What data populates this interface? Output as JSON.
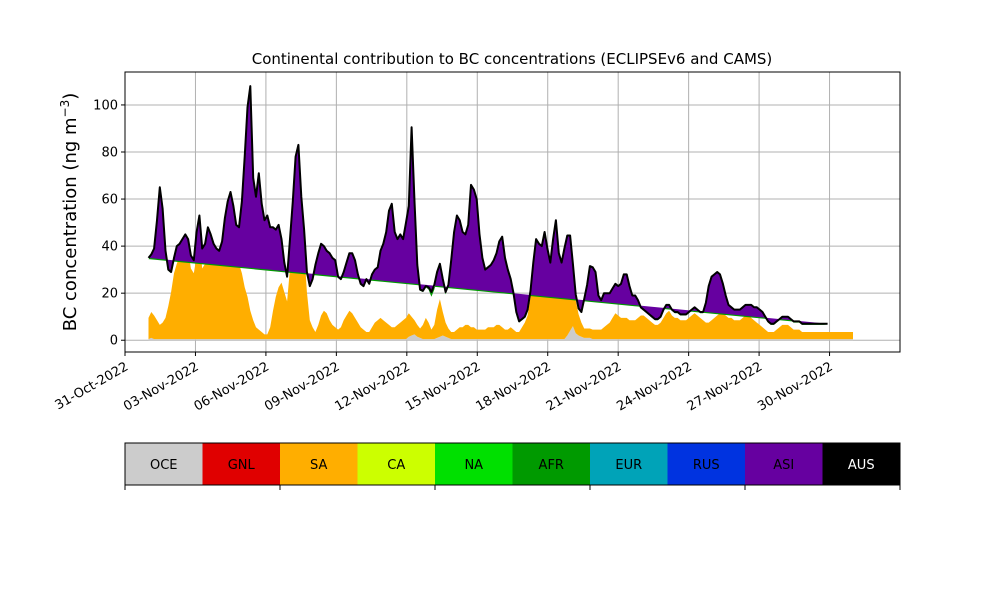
{
  "chart_data": {
    "type": "area",
    "title": "Continental contribution to BC concentrations (ECLIPSEv6 and CAMS)",
    "ylabel_main": "BC concentration (ng m",
    "ylabel_sup": "−3",
    "ylabel_close": ")",
    "ylim": [
      -5,
      114
    ],
    "yticks": [
      0,
      20,
      40,
      60,
      80,
      100
    ],
    "x_start": "2022-11-01",
    "x_end": "2022-12-01",
    "xlim": [
      "2022-10-31T00:00",
      "2022-12-03T00:00"
    ],
    "xticks": [
      "31-Oct-2022",
      "03-Nov-2022",
      "06-Nov-2022",
      "09-Nov-2022",
      "12-Nov-2022",
      "15-Nov-2022",
      "18-Nov-2022",
      "21-Nov-2022",
      "24-Nov-2022",
      "27-Nov-2022",
      "30-Nov-2022"
    ],
    "grid": true,
    "legend": {
      "placement": "bottom",
      "entries": [
        {
          "name": "OCE",
          "color": "#cccccc",
          "text_color": "#000000"
        },
        {
          "name": "GNL",
          "color": "#e00000",
          "text_color": "#000000"
        },
        {
          "name": "SA",
          "color": "#ffae00",
          "text_color": "#000000"
        },
        {
          "name": "CA",
          "color": "#ccff00",
          "text_color": "#000000"
        },
        {
          "name": "NA",
          "color": "#00e000",
          "text_color": "#000000"
        },
        {
          "name": "AFR",
          "color": "#009a00",
          "text_color": "#000000"
        },
        {
          "name": "EUR",
          "color": "#00a3b8",
          "text_color": "#000000"
        },
        {
          "name": "RUS",
          "color": "#0033e0",
          "text_color": "#000000"
        },
        {
          "name": "ASI",
          "color": "#6600a0",
          "text_color": "#000000"
        },
        {
          "name": "AUS",
          "color": "#000000",
          "text_color": "#ffffff"
        }
      ]
    },
    "series": [
      {
        "name": "OCE",
        "color": "#cccccc",
        "values": [
          0.5,
          1,
          0.5,
          0.5,
          0.5,
          0.5,
          0.5,
          0.5,
          0.5,
          0.5,
          0.5,
          0.5,
          0.5,
          0.5,
          0.5,
          0.5,
          0.5,
          0.5,
          0.5,
          0.5,
          0.5,
          0.5,
          0.5,
          0.5,
          0.5,
          0.5,
          0.5,
          0.5,
          0.5,
          0.5,
          0.5,
          0.5,
          0.5,
          0.5,
          0.5,
          0.5,
          0.5,
          0.5,
          0.5,
          0.5,
          0.5,
          0.5,
          0.5,
          0.5,
          0.5,
          0.5,
          0.5,
          0.5,
          0.5,
          0.5,
          0.5,
          0.5,
          0.5,
          0.5,
          0.5,
          0.5,
          0.5,
          0.5,
          0.5,
          0.5,
          0.5,
          0.5,
          0.5,
          0.5,
          0.5,
          0.5,
          0.5,
          0.5,
          0.5,
          0.5,
          0.5,
          0.5,
          0.5,
          0.5,
          0.5,
          0.5,
          0.5,
          0.5,
          0.5,
          0.5,
          0.5,
          0.5,
          0.5,
          0.5,
          0.5,
          0.5,
          0.5,
          0.5,
          0.5,
          0.5,
          0.5,
          0.5,
          1.5,
          2,
          2.5,
          1.5,
          1,
          0.5,
          0.5,
          0.5,
          0.5,
          0.5,
          1,
          1.5,
          2,
          1.5,
          1,
          0.5,
          0.5,
          0.5,
          0.5,
          0.5,
          0.5,
          0.5,
          0.5,
          0.5,
          0.5,
          0.5,
          0.5,
          0.5,
          0.5,
          0.5,
          0.5,
          0.5,
          0.5,
          0.5,
          0.5,
          0.5,
          0.5,
          0.5,
          0.5,
          0.5,
          0.5,
          0.5,
          0.5,
          0.5,
          0.5,
          0.5,
          0.5,
          0.5,
          0.5,
          0.5,
          0.5,
          0.5,
          0.5,
          0.5,
          0.5,
          0.5,
          2,
          4,
          6,
          3,
          2,
          1.5,
          1,
          1,
          1,
          0.5,
          0.5,
          0.5,
          0.5,
          0.5,
          0.5,
          0.5,
          0.5,
          0.5,
          0.5,
          0.5,
          0.5,
          0.5,
          0.5,
          0.5,
          0.5,
          0.5,
          0.5,
          0.5,
          0.5,
          0.5,
          0.5,
          0.5,
          0.5,
          0.5,
          0.5,
          0.5,
          0.5,
          0.5,
          0.5,
          0.5,
          0.5,
          0.5,
          0.5,
          0.5,
          0.5,
          0.5,
          0.5,
          0.5,
          0.5,
          0.5,
          0.5,
          0.5,
          0.5,
          0.5,
          0.5,
          0.5,
          0.5,
          0.5,
          0.5,
          0.5,
          0.5,
          0.5,
          0.5,
          0.5,
          0.5,
          0.5,
          0.5,
          0.5,
          0.5,
          0.5,
          0.5,
          0.5,
          0.5,
          0.5,
          0.5,
          0.5,
          0.5,
          0.5,
          0.5,
          0.5,
          0.5,
          0.5,
          0.5,
          0.5,
          0.5,
          0.5,
          0.5,
          0.5,
          0.5,
          0.5,
          0.5,
          0.5,
          0.5,
          0.5,
          0.5,
          0.5,
          0.5,
          0.5,
          0.5,
          0.5,
          0.5,
          0.5
        ]
      },
      {
        "name": "SA",
        "color": "#ffae00",
        "values": [
          9,
          11,
          10,
          8,
          6,
          7,
          9,
          14,
          20,
          28,
          32,
          35,
          38,
          40,
          38,
          30,
          28,
          35,
          42,
          30,
          32,
          38,
          36,
          34,
          33,
          32,
          36,
          45,
          52,
          56,
          50,
          40,
          32,
          28,
          22,
          18,
          12,
          8,
          5,
          4,
          3,
          2,
          2,
          5,
          12,
          18,
          22,
          24,
          20,
          16,
          30,
          40,
          55,
          62,
          50,
          38,
          20,
          8,
          5,
          3,
          6,
          10,
          12,
          11,
          8,
          6,
          5,
          4,
          5,
          8,
          10,
          12,
          11,
          9,
          7,
          5,
          4,
          3,
          3,
          5,
          7,
          8,
          9,
          8,
          7,
          6,
          5,
          5,
          6,
          7,
          8,
          9,
          10,
          8,
          6,
          5,
          4,
          6,
          9,
          7,
          4,
          6,
          12,
          16,
          10,
          6,
          4,
          3,
          3,
          4,
          5,
          5,
          6,
          6,
          5,
          5,
          4,
          4,
          4,
          4,
          5,
          5,
          5,
          6,
          6,
          5,
          4,
          4,
          5,
          4,
          3,
          3,
          5,
          7,
          10,
          18,
          30,
          40,
          38,
          36,
          42,
          36,
          30,
          40,
          48,
          34,
          30,
          36,
          40,
          38,
          24,
          14,
          9,
          6,
          4,
          4,
          4,
          4,
          4,
          4,
          4,
          5,
          6,
          7,
          9,
          11,
          10,
          9,
          9,
          9,
          8,
          8,
          8,
          9,
          10,
          10,
          9,
          8,
          7,
          6,
          6,
          7,
          9,
          11,
          12,
          10,
          9,
          9,
          8,
          8,
          8,
          9,
          10,
          11,
          10,
          9,
          8,
          7,
          7,
          8,
          9,
          10,
          11,
          11,
          10,
          9,
          9,
          8,
          8,
          8,
          9,
          10,
          10,
          9,
          8,
          7,
          6,
          5,
          4,
          3,
          3,
          3,
          4,
          5,
          6,
          6,
          6,
          5,
          4,
          4,
          4,
          3,
          3,
          3,
          3,
          3,
          3,
          3,
          3,
          3,
          3,
          3,
          3,
          3,
          3,
          3,
          3,
          3,
          3,
          3,
          3,
          3,
          3
        ]
      },
      {
        "name": "AFR",
        "color": "#009a00",
        "values": [
          25,
          24,
          28,
          42,
          58,
          48,
          28,
          15,
          8,
          6,
          7,
          5,
          4,
          4,
          4,
          5,
          5,
          10,
          10,
          8,
          8,
          9,
          8,
          6,
          5,
          5,
          5,
          6,
          6,
          6,
          6,
          8,
          15,
          30,
          55,
          80,
          95,
          60,
          55,
          66,
          54,
          48,
          50,
          42,
          35,
          28,
          26,
          18,
          12,
          10,
          12,
          18,
          22,
          20,
          10,
          8,
          8,
          14,
          20,
          28,
          30,
          30,
          27,
          26,
          28,
          28,
          28,
          22,
          20,
          20,
          22,
          24,
          25,
          24,
          20,
          18,
          18,
          22,
          20,
          22,
          22,
          22,
          28,
          32,
          38,
          48,
          52,
          40,
          36,
          37,
          34,
          40,
          45,
          80,
          50,
          25,
          16,
          14,
          13,
          14,
          14,
          15,
          14,
          13,
          12,
          12,
          18,
          30,
          42,
          48,
          45,
          40,
          38,
          42,
          60,
          58,
          55,
          40,
          30,
          25,
          25,
          26,
          28,
          30,
          35,
          38,
          30,
          25,
          20,
          15,
          8,
          4,
          3,
          2,
          2,
          2,
          2,
          2,
          2,
          3,
          3,
          2,
          2,
          2,
          2,
          2,
          2,
          2,
          2,
          2,
          2,
          2,
          2,
          4,
          12,
          18,
          26,
          26,
          24,
          14,
          12,
          14,
          13,
          12,
          12,
          12,
          12,
          14,
          18,
          18,
          14,
          10,
          10,
          7,
          3,
          2,
          2,
          2,
          2,
          2,
          2,
          2,
          3,
          3,
          2,
          2,
          2,
          2,
          2,
          2,
          2,
          2,
          2,
          2,
          2,
          2,
          3,
          8,
          15,
          18,
          18,
          18,
          16,
          12,
          8,
          5,
          4,
          4,
          4,
          4,
          4,
          4,
          4,
          5,
          5,
          6,
          6,
          6,
          5,
          4,
          3,
          3,
          3,
          3,
          3,
          3,
          3,
          3,
          3,
          3,
          3,
          3,
          3,
          3,
          3,
          3,
          3,
          3,
          3,
          3,
          3
        ]
      },
      {
        "name": "ASI",
        "color": "#6600a0",
        "values": [
          0.5,
          0.5,
          0.5,
          0.5,
          0.5,
          0.5,
          0.5,
          0.5,
          0.5,
          0.5,
          0.5,
          0.5,
          0.5,
          0.5,
          0.5,
          0.5,
          0.5,
          0.5,
          0.5,
          0.5,
          0.5,
          0.5,
          0.5,
          0.5,
          0.5,
          0.5,
          0.5,
          0.5,
          0.5,
          0.5,
          0.5,
          0.5,
          0.5,
          0.5,
          0.5,
          0.5,
          0.5,
          0.5,
          0.5,
          0.5,
          0.5,
          0.5,
          0.5,
          0.5,
          0.5,
          0.5,
          0.5,
          0.5,
          0.5,
          0.5,
          0.5,
          0.5,
          0.5,
          0.5,
          0.5,
          0.5,
          0.5,
          0.5,
          0.5,
          0.5,
          0.5,
          0.5,
          0.5,
          0.5,
          0.5,
          0.5,
          0.5,
          0.5,
          0.5,
          0.5,
          0.5,
          0.5,
          0.5,
          0.5,
          0.5,
          0.5,
          0.5,
          0.5,
          0.5,
          0.5,
          0.5,
          0.5,
          0.5,
          0.5,
          0.5,
          0.5,
          0.5,
          0.5,
          0.5,
          0.5,
          0.5,
          0.5,
          0.5,
          0.5,
          0.5,
          0.5,
          0.5,
          0.5,
          0.5,
          1,
          2,
          2,
          2,
          2,
          2,
          1,
          0.5,
          0.5,
          0.5,
          0.5,
          0.5,
          0.5,
          0.5,
          0.5,
          0.5,
          0.5,
          0.5,
          0.5,
          0.5,
          0.5,
          0.5,
          0.5,
          0.5,
          0.5,
          0.5,
          0.5,
          0.5,
          0.5,
          0.5,
          0.5,
          0.5,
          0.5,
          0.5,
          0.5,
          0.5,
          0.5,
          0.5,
          0.5,
          0.5,
          0.5,
          0.5,
          0.5,
          0.5,
          0.5,
          0.5,
          0.5,
          0.5,
          0.5,
          0.5,
          0.5,
          0.5,
          0.5,
          0.5,
          0.5,
          0.5,
          0.5,
          0.5,
          0.5,
          0.5,
          0.5,
          0.5,
          0.5,
          0.5,
          0.5,
          0.5,
          0.5,
          0.5,
          0.5,
          0.5,
          0.5,
          0.5,
          0.5,
          0.5,
          0.5,
          0.5,
          0.5,
          0.5,
          0.5,
          0.5,
          0.5,
          0.5,
          0.5,
          0.5,
          0.5,
          0.5,
          0.5,
          0.5,
          0.5,
          0.5,
          0.5,
          0.5,
          0.5,
          0.5,
          0.5,
          0.5,
          0.5,
          0.5,
          0.5,
          0.5,
          0.5,
          0.5,
          0.5,
          0.5,
          0.5,
          0.5,
          0.5,
          0.5,
          0.5,
          0.5,
          0.5,
          0.5,
          0.5,
          0.5,
          0.5,
          0.5,
          0.5,
          0.5,
          0.5,
          0.5,
          0.5,
          0.5,
          0.5,
          0.5,
          0.5,
          0.5,
          0.5,
          0.5,
          0.5,
          0.5,
          0.5,
          0.5,
          0.5,
          0.5,
          0.5,
          0.5,
          0.5,
          0.5,
          0.5,
          0.5,
          0.5,
          0.5,
          0.5,
          0.5,
          0.5,
          0.5,
          0.5,
          0.5,
          0.5,
          0.5,
          0.5
        ]
      }
    ]
  }
}
